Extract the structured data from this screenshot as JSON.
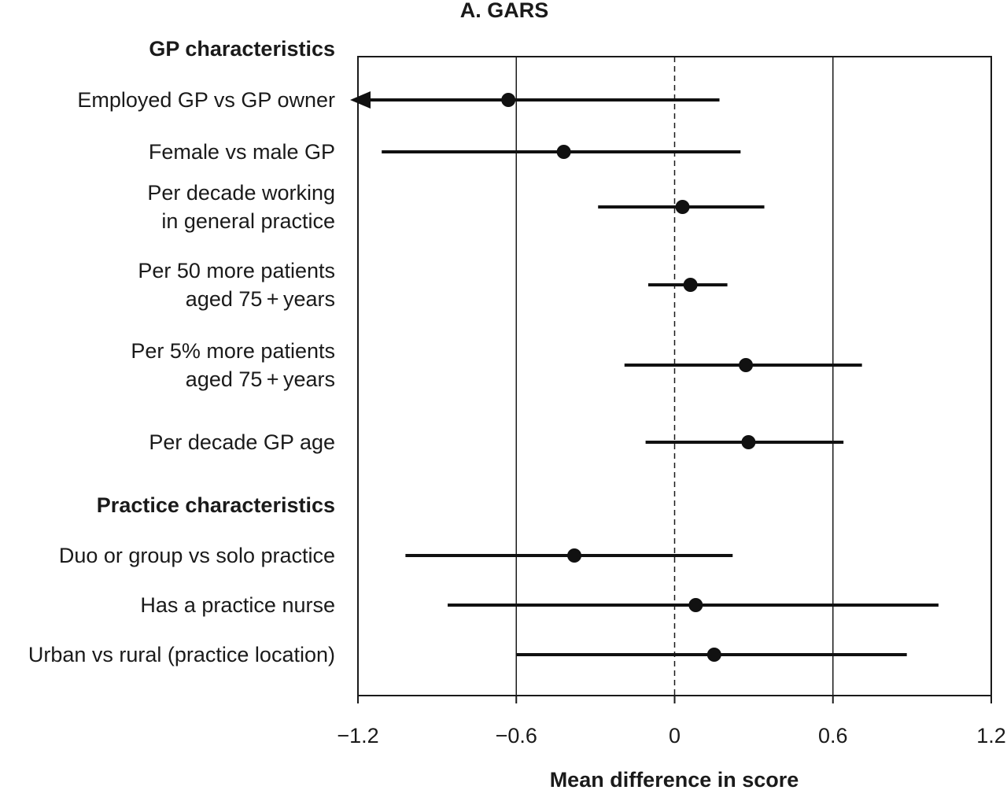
{
  "chart_data": {
    "type": "forest",
    "title": "A. GARS",
    "xlabel": "Mean difference in score",
    "xlim": [
      -1.2,
      1.2
    ],
    "xticks": [
      -1.2,
      -0.6,
      0,
      0.6,
      1.2
    ],
    "xtick_labels": [
      "−1.2",
      "−0.6",
      "0",
      "0.6",
      "1.2"
    ],
    "reference_line": 0,
    "vertical_gridlines": [
      -0.6,
      0.6
    ],
    "groups": [
      {
        "label": "GP characteristics",
        "rows": [
          {
            "label": [
              "Employed GP vs GP owner"
            ],
            "estimate": -0.63,
            "lower": -1.25,
            "upper": 0.17,
            "lower_truncated": true
          },
          {
            "label": [
              "Female vs male GP"
            ],
            "estimate": -0.42,
            "lower": -1.11,
            "upper": 0.25
          },
          {
            "label": [
              "Per decade working",
              "in general practice"
            ],
            "estimate": 0.03,
            "lower": -0.29,
            "upper": 0.34
          },
          {
            "label": [
              "Per 50 more patients",
              "aged 75 + years"
            ],
            "estimate": 0.06,
            "lower": -0.1,
            "upper": 0.2
          },
          {
            "label": [
              "Per 5% more patients",
              "aged 75 + years"
            ],
            "estimate": 0.27,
            "lower": -0.19,
            "upper": 0.71
          },
          {
            "label": [
              "Per decade GP age"
            ],
            "estimate": 0.28,
            "lower": -0.11,
            "upper": 0.64
          }
        ]
      },
      {
        "label": "Practice characteristics",
        "rows": [
          {
            "label": [
              "Duo or group vs solo practice"
            ],
            "estimate": -0.38,
            "lower": -1.02,
            "upper": 0.22
          },
          {
            "label": [
              "Has a practice nurse"
            ],
            "estimate": 0.08,
            "lower": -0.86,
            "upper": 1.0
          },
          {
            "label": [
              "Urban vs rural (practice location)"
            ],
            "estimate": 0.15,
            "lower": -0.6,
            "upper": 0.88
          }
        ]
      }
    ]
  }
}
